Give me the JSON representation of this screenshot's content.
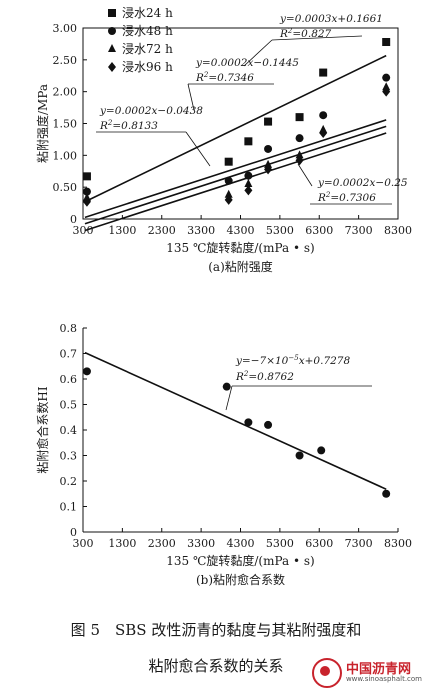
{
  "chart_data": [
    {
      "type": "scatter",
      "caption": "(a)粘附强度",
      "xlabel": "135 ℃旋转黏度/(mPa • s)",
      "ylabel": "粘附强度/MPa",
      "xlim": [
        300,
        8300
      ],
      "ylim": [
        0,
        3.0
      ],
      "xticks": [
        300,
        1300,
        2300,
        3300,
        4300,
        5300,
        6300,
        7300,
        8300
      ],
      "yticks": [
        "0",
        "0.50",
        "1.00",
        "1.50",
        "2.00",
        "2.50",
        "3.00"
      ],
      "ytick_values": [
        0,
        0.5,
        1.0,
        1.5,
        2.0,
        2.5,
        3.0
      ],
      "legend_position": "top-left",
      "series": [
        {
          "name": "浸水24 h",
          "marker": "square",
          "x": [
            400,
            4000,
            4500,
            5000,
            5800,
            6400,
            8000
          ],
          "y": [
            0.67,
            0.9,
            1.22,
            1.53,
            1.6,
            2.3,
            2.78
          ]
        },
        {
          "name": "浸水48 h",
          "marker": "circle",
          "x": [
            400,
            4000,
            4500,
            5000,
            5800,
            6400,
            8000
          ],
          "y": [
            0.43,
            0.6,
            0.68,
            1.1,
            1.27,
            1.63,
            2.22
          ]
        },
        {
          "name": "浸水72 h",
          "marker": "triangle",
          "x": [
            400,
            4000,
            4500,
            5000,
            5800,
            6400,
            8000
          ],
          "y": [
            0.33,
            0.38,
            0.55,
            0.85,
            1.0,
            1.4,
            2.07
          ]
        },
        {
          "name": "浸水96 h",
          "marker": "diamond",
          "x": [
            400,
            4000,
            4500,
            5000,
            5800,
            6400,
            8000
          ],
          "y": [
            0.27,
            0.3,
            0.45,
            0.78,
            0.92,
            1.35,
            2.0
          ]
        }
      ],
      "fits": [
        {
          "slope": 0.0003,
          "intercept": 0.1661,
          "label_eq": "y=0.0003x+0.1661",
          "label_r2": "R2=0.827"
        },
        {
          "slope": 0.0002,
          "intercept": -0.1445,
          "label_eq": "y=0.0002x−0.1445",
          "label_r2": "R2=0.7346"
        },
        {
          "slope": 0.0002,
          "intercept": -0.0438,
          "label_eq": "y=0.0002x−0.0438",
          "label_r2": "R2=0.8133"
        },
        {
          "slope": 0.0002,
          "intercept": -0.25,
          "label_eq": "y=0.0002x−0.25",
          "label_r2": "R2=0.7306"
        }
      ]
    },
    {
      "type": "scatter",
      "caption": "(b)粘附愈合系数",
      "xlabel": "135 ℃旋转黏度/(mPa • s)",
      "ylabel": "粘附愈合系数HI",
      "xlim": [
        300,
        8300
      ],
      "ylim": [
        0,
        0.8
      ],
      "xticks": [
        300,
        1300,
        2300,
        3300,
        4300,
        5300,
        6300,
        7300,
        8300
      ],
      "yticks": [
        "0",
        "0.1",
        "0.2",
        "0.3",
        "0.4",
        "0.5",
        "0.6",
        "0.7",
        "0.8"
      ],
      "ytick_values": [
        0,
        0.1,
        0.2,
        0.3,
        0.4,
        0.5,
        0.6,
        0.7,
        0.8
      ],
      "series": [
        {
          "marker": "circle",
          "x": [
            400,
            3950,
            4500,
            5000,
            5800,
            6350,
            8000
          ],
          "y": [
            0.63,
            0.57,
            0.43,
            0.42,
            0.3,
            0.32,
            0.15
          ]
        }
      ],
      "fits": [
        {
          "slope": -7e-05,
          "intercept": 0.7278,
          "label_eq": "y=−7×10−5x+0.7278",
          "label_r2": "R2=0.8762"
        }
      ]
    }
  ],
  "figure_caption_line1": "图 5　SBS 改性沥青的黏度与其粘附强度和",
  "figure_caption_line2": "粘附愈合系数的关系",
  "watermark": {
    "name": "中国沥青网",
    "url": "www.sinoasphalt.com"
  }
}
